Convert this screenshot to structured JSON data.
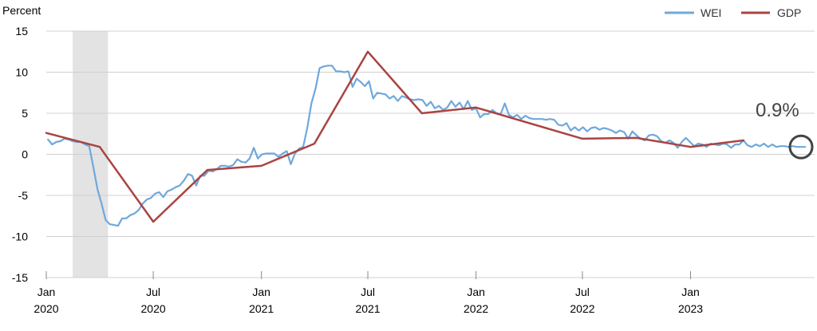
{
  "chart_data": {
    "type": "line",
    "ylabel": "Percent",
    "ylim": [
      -15,
      15
    ],
    "yticks": [
      15,
      10,
      5,
      0,
      -5,
      -10,
      -15
    ],
    "xlim": [
      "2020-01-01",
      "2023-07-31"
    ],
    "xticks": [
      {
        "date": "2020-01-01",
        "month": "Jan",
        "year": "2020"
      },
      {
        "date": "2020-07-01",
        "month": "Jul",
        "year": "2020"
      },
      {
        "date": "2021-01-01",
        "month": "Jan",
        "year": "2021"
      },
      {
        "date": "2021-07-01",
        "month": "Jul",
        "year": "2021"
      },
      {
        "date": "2022-01-01",
        "month": "Jan",
        "year": "2022"
      },
      {
        "date": "2022-07-01",
        "month": "Jul",
        "year": "2022"
      },
      {
        "date": "2023-01-01",
        "month": "Jan",
        "year": "2023"
      }
    ],
    "grid": true,
    "legend_position": "top-right",
    "recession_shading": {
      "start": "2020-02-15",
      "end": "2020-04-15"
    },
    "annotation": {
      "text": "0.9%",
      "date": "2023-07-20",
      "value": 0.9
    },
    "series": [
      {
        "name": "WEI",
        "color": "#6fa8dc",
        "points": [
          [
            "2020-01-04",
            1.8
          ],
          [
            "2020-01-11",
            1.2
          ],
          [
            "2020-01-18",
            1.5
          ],
          [
            "2020-01-25",
            1.6
          ],
          [
            "2020-02-01",
            1.9
          ],
          [
            "2020-02-08",
            1.8
          ],
          [
            "2020-02-15",
            1.6
          ],
          [
            "2020-02-22",
            1.5
          ],
          [
            "2020-02-29",
            1.5
          ],
          [
            "2020-03-07",
            1.2
          ],
          [
            "2020-03-14",
            1.0
          ],
          [
            "2020-03-21",
            -1.5
          ],
          [
            "2020-03-28",
            -4.2
          ],
          [
            "2020-04-04",
            -6.0
          ],
          [
            "2020-04-11",
            -8.0
          ],
          [
            "2020-04-18",
            -8.5
          ],
          [
            "2020-04-25",
            -8.6
          ],
          [
            "2020-05-02",
            -8.7
          ],
          [
            "2020-05-09",
            -7.8
          ],
          [
            "2020-05-16",
            -7.8
          ],
          [
            "2020-05-23",
            -7.4
          ],
          [
            "2020-05-30",
            -7.2
          ],
          [
            "2020-06-06",
            -6.8
          ],
          [
            "2020-06-13",
            -6.0
          ],
          [
            "2020-06-20",
            -5.5
          ],
          [
            "2020-06-27",
            -5.3
          ],
          [
            "2020-07-04",
            -4.8
          ],
          [
            "2020-07-11",
            -4.6
          ],
          [
            "2020-07-18",
            -5.2
          ],
          [
            "2020-07-25",
            -4.5
          ],
          [
            "2020-08-01",
            -4.3
          ],
          [
            "2020-08-08",
            -4.0
          ],
          [
            "2020-08-15",
            -3.8
          ],
          [
            "2020-08-22",
            -3.2
          ],
          [
            "2020-08-29",
            -2.4
          ],
          [
            "2020-09-05",
            -2.6
          ],
          [
            "2020-09-12",
            -3.8
          ],
          [
            "2020-09-19",
            -2.6
          ],
          [
            "2020-09-26",
            -2.6
          ],
          [
            "2020-10-03",
            -2.0
          ],
          [
            "2020-10-10",
            -2.1
          ],
          [
            "2020-10-17",
            -1.8
          ],
          [
            "2020-10-24",
            -1.4
          ],
          [
            "2020-10-31",
            -1.4
          ],
          [
            "2020-11-07",
            -1.5
          ],
          [
            "2020-11-14",
            -1.3
          ],
          [
            "2020-11-21",
            -0.6
          ],
          [
            "2020-11-28",
            -0.9
          ],
          [
            "2020-12-05",
            -1.0
          ],
          [
            "2020-12-12",
            -0.5
          ],
          [
            "2020-12-19",
            0.8
          ],
          [
            "2020-12-26",
            -0.5
          ],
          [
            "2021-01-02",
            0.0
          ],
          [
            "2021-01-09",
            0.1
          ],
          [
            "2021-01-16",
            0.1
          ],
          [
            "2021-01-23",
            0.1
          ],
          [
            "2021-01-30",
            -0.3
          ],
          [
            "2021-02-06",
            0.1
          ],
          [
            "2021-02-13",
            0.4
          ],
          [
            "2021-02-20",
            -1.2
          ],
          [
            "2021-02-27",
            0.1
          ],
          [
            "2021-03-06",
            0.7
          ],
          [
            "2021-03-13",
            0.9
          ],
          [
            "2021-03-20",
            3.2
          ],
          [
            "2021-03-27",
            6.2
          ],
          [
            "2021-04-03",
            8.0
          ],
          [
            "2021-04-10",
            10.5
          ],
          [
            "2021-04-17",
            10.7
          ],
          [
            "2021-04-24",
            10.8
          ],
          [
            "2021-05-01",
            10.8
          ],
          [
            "2021-05-08",
            10.1
          ],
          [
            "2021-05-15",
            10.1
          ],
          [
            "2021-05-22",
            10.0
          ],
          [
            "2021-05-29",
            10.1
          ],
          [
            "2021-06-05",
            8.2
          ],
          [
            "2021-06-12",
            9.2
          ],
          [
            "2021-06-19",
            8.8
          ],
          [
            "2021-06-26",
            8.3
          ],
          [
            "2021-07-03",
            8.9
          ],
          [
            "2021-07-10",
            6.8
          ],
          [
            "2021-07-17",
            7.5
          ],
          [
            "2021-07-24",
            7.4
          ],
          [
            "2021-07-31",
            7.3
          ],
          [
            "2021-08-07",
            6.8
          ],
          [
            "2021-08-14",
            7.1
          ],
          [
            "2021-08-21",
            6.5
          ],
          [
            "2021-08-28",
            7.1
          ],
          [
            "2021-09-04",
            6.9
          ],
          [
            "2021-09-11",
            6.7
          ],
          [
            "2021-09-18",
            6.6
          ],
          [
            "2021-09-25",
            6.7
          ],
          [
            "2021-10-02",
            6.6
          ],
          [
            "2021-10-09",
            5.9
          ],
          [
            "2021-10-16",
            6.4
          ],
          [
            "2021-10-23",
            5.6
          ],
          [
            "2021-10-30",
            5.9
          ],
          [
            "2021-11-06",
            5.4
          ],
          [
            "2021-11-13",
            5.7
          ],
          [
            "2021-11-20",
            6.5
          ],
          [
            "2021-11-27",
            5.8
          ],
          [
            "2021-12-04",
            6.3
          ],
          [
            "2021-12-11",
            5.5
          ],
          [
            "2021-12-18",
            6.5
          ],
          [
            "2021-12-25",
            5.4
          ],
          [
            "2022-01-01",
            5.6
          ],
          [
            "2022-01-08",
            4.5
          ],
          [
            "2022-01-15",
            4.9
          ],
          [
            "2022-01-22",
            4.9
          ],
          [
            "2022-01-29",
            5.4
          ],
          [
            "2022-02-05",
            5.0
          ],
          [
            "2022-02-12",
            4.9
          ],
          [
            "2022-02-19",
            6.2
          ],
          [
            "2022-02-26",
            4.8
          ],
          [
            "2022-03-05",
            4.5
          ],
          [
            "2022-03-12",
            4.8
          ],
          [
            "2022-03-19",
            4.3
          ],
          [
            "2022-03-26",
            4.7
          ],
          [
            "2022-04-02",
            4.4
          ],
          [
            "2022-04-09",
            4.3
          ],
          [
            "2022-04-16",
            4.3
          ],
          [
            "2022-04-23",
            4.3
          ],
          [
            "2022-04-30",
            4.2
          ],
          [
            "2022-05-07",
            4.3
          ],
          [
            "2022-05-14",
            4.2
          ],
          [
            "2022-05-21",
            3.6
          ],
          [
            "2022-05-28",
            3.5
          ],
          [
            "2022-06-04",
            3.8
          ],
          [
            "2022-06-11",
            2.9
          ],
          [
            "2022-06-18",
            3.3
          ],
          [
            "2022-06-25",
            2.9
          ],
          [
            "2022-07-02",
            3.3
          ],
          [
            "2022-07-09",
            2.8
          ],
          [
            "2022-07-16",
            3.2
          ],
          [
            "2022-07-23",
            3.3
          ],
          [
            "2022-07-30",
            3.0
          ],
          [
            "2022-08-06",
            3.2
          ],
          [
            "2022-08-13",
            3.1
          ],
          [
            "2022-08-20",
            2.9
          ],
          [
            "2022-08-27",
            2.6
          ],
          [
            "2022-09-03",
            2.9
          ],
          [
            "2022-09-10",
            2.7
          ],
          [
            "2022-09-17",
            1.9
          ],
          [
            "2022-09-24",
            2.8
          ],
          [
            "2022-10-01",
            2.3
          ],
          [
            "2022-10-08",
            1.9
          ],
          [
            "2022-10-15",
            1.7
          ],
          [
            "2022-10-22",
            2.3
          ],
          [
            "2022-10-29",
            2.4
          ],
          [
            "2022-11-05",
            2.2
          ],
          [
            "2022-11-12",
            1.6
          ],
          [
            "2022-11-19",
            1.4
          ],
          [
            "2022-11-26",
            1.7
          ],
          [
            "2022-12-03",
            1.4
          ],
          [
            "2022-12-10",
            0.8
          ],
          [
            "2022-12-17",
            1.5
          ],
          [
            "2022-12-24",
            2.0
          ],
          [
            "2022-12-31",
            1.5
          ],
          [
            "2023-01-07",
            1.0
          ],
          [
            "2023-01-14",
            1.3
          ],
          [
            "2023-01-21",
            1.2
          ],
          [
            "2023-01-28",
            0.9
          ],
          [
            "2023-02-04",
            1.3
          ],
          [
            "2023-02-11",
            1.2
          ],
          [
            "2023-02-18",
            1.1
          ],
          [
            "2023-02-25",
            1.3
          ],
          [
            "2023-03-04",
            1.2
          ],
          [
            "2023-03-11",
            0.8
          ],
          [
            "2023-03-18",
            1.2
          ],
          [
            "2023-03-25",
            1.2
          ],
          [
            "2023-04-01",
            1.7
          ],
          [
            "2023-04-08",
            1.1
          ],
          [
            "2023-04-15",
            0.9
          ],
          [
            "2023-04-22",
            1.2
          ],
          [
            "2023-04-29",
            1.0
          ],
          [
            "2023-05-06",
            1.3
          ],
          [
            "2023-05-13",
            0.9
          ],
          [
            "2023-05-20",
            1.2
          ],
          [
            "2023-05-27",
            0.9
          ],
          [
            "2023-06-03",
            1.0
          ],
          [
            "2023-06-10",
            1.0
          ],
          [
            "2023-06-17",
            0.9
          ],
          [
            "2023-06-24",
            1.0
          ],
          [
            "2023-07-01",
            0.9
          ],
          [
            "2023-07-08",
            0.9
          ],
          [
            "2023-07-15",
            0.9
          ]
        ]
      },
      {
        "name": "GDP",
        "color": "#a94442",
        "points": [
          [
            "2020-01-01",
            2.6
          ],
          [
            "2020-04-01",
            0.9
          ],
          [
            "2020-07-01",
            -8.2
          ],
          [
            "2020-10-01",
            -1.9
          ],
          [
            "2021-01-01",
            -1.4
          ],
          [
            "2021-04-01",
            1.3
          ],
          [
            "2021-07-01",
            12.5
          ],
          [
            "2021-10-01",
            5.0
          ],
          [
            "2022-01-01",
            5.7
          ],
          [
            "2022-07-01",
            1.9
          ],
          [
            "2022-10-01",
            2.0
          ],
          [
            "2023-01-01",
            0.9
          ],
          [
            "2023-04-01",
            1.7
          ]
        ]
      }
    ]
  }
}
